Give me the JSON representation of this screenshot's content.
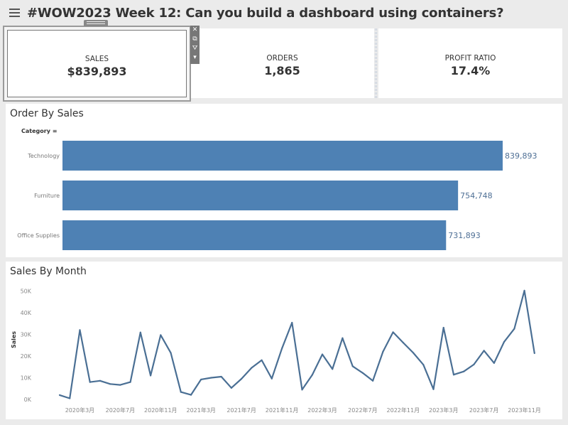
{
  "header": {
    "title": "#WOW2023 Week 12: Can you build a dashboard using containers?",
    "menu_icon": "hamburger-menu-icon"
  },
  "kpis": [
    {
      "label": "SALES",
      "value": "$839,893"
    },
    {
      "label": "ORDERS",
      "value": "1,865"
    },
    {
      "label": "PROFIT RATIO",
      "value": "17.4%"
    }
  ],
  "toolbar": {
    "close": "✕",
    "open": "⧉",
    "filter": "⛛",
    "more": "▾"
  },
  "bar_panel": {
    "title": "Order By Sales",
    "category_header": "Category",
    "sort_icon": "sort-icon"
  },
  "line_panel": {
    "title": "Sales By Month"
  },
  "colors": {
    "bar": "#4e81b4",
    "line": "#4a6f94",
    "label": "#4e6f95",
    "background": "#ebebeb"
  },
  "chart_data": [
    {
      "type": "bar",
      "orientation": "horizontal",
      "title": "Order By Sales",
      "categories": [
        "Technology",
        "Furniture",
        "Office Supplies"
      ],
      "values": [
        839893,
        754748,
        731893
      ],
      "data_labels": [
        "839,893",
        "754,748",
        "731,893"
      ],
      "ylabel": "Category"
    },
    {
      "type": "line",
      "title": "Sales By Month",
      "ylabel": "Sales",
      "ylim": [
        0,
        50000
      ],
      "yticks": [
        "0K",
        "10K",
        "20K",
        "30K",
        "40K",
        "50K"
      ],
      "ytick_values": [
        0,
        10000,
        20000,
        30000,
        40000,
        50000
      ],
      "xticks": [
        "2020年3月",
        "2020年7月",
        "2020年11月",
        "2021年3月",
        "2021年7月",
        "2021年11月",
        "2022年3月",
        "2022年7月",
        "2022年11月",
        "2023年3月",
        "2023年7月",
        "2023年11月"
      ],
      "xtick_month_index": [
        2,
        6,
        10,
        14,
        18,
        22,
        26,
        30,
        34,
        38,
        42,
        46
      ],
      "x_start": "2020-01",
      "x_end": "2023-12",
      "values": [
        2000,
        500,
        32000,
        8000,
        8600,
        7100,
        6700,
        8000,
        30900,
        11000,
        29700,
        21500,
        3400,
        2100,
        9200,
        10000,
        10500,
        5300,
        9500,
        14600,
        18100,
        9600,
        23500,
        35400,
        4500,
        11300,
        20800,
        14000,
        28300,
        15300,
        12200,
        8600,
        22000,
        31000,
        26200,
        21500,
        16000,
        4700,
        33100,
        11400,
        12900,
        16100,
        22500,
        16800,
        26600,
        32600,
        50200,
        21300
      ]
    }
  ]
}
